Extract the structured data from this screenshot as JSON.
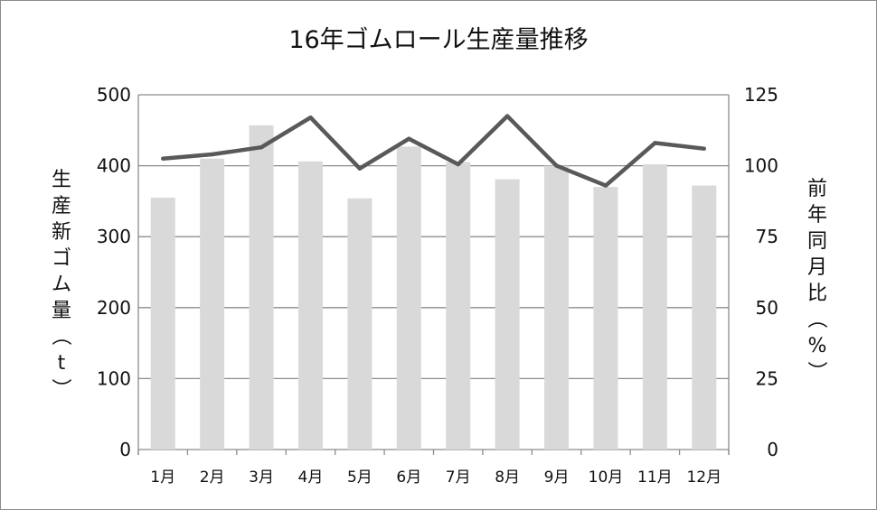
{
  "chart_data": {
    "type": "bar+line",
    "title": "16年ゴムロール生産量推移",
    "categories": [
      "1月",
      "2月",
      "3月",
      "4月",
      "5月",
      "6月",
      "7月",
      "8月",
      "9月",
      "10月",
      "11月",
      "12月"
    ],
    "series": [
      {
        "type": "bar",
        "axis": "left",
        "values": [
          355,
          410,
          457,
          406,
          354,
          427,
          405,
          381,
          400,
          370,
          402,
          372
        ]
      },
      {
        "type": "line",
        "axis": "right",
        "values": [
          102.5,
          104,
          106.5,
          117,
          99,
          109.5,
          100.5,
          117.5,
          100,
          93,
          108,
          106
        ]
      }
    ],
    "y_left": {
      "label": "生産新ゴム量（t）",
      "ylim": [
        0,
        500
      ],
      "ticks": [
        "0",
        "100",
        "200",
        "300",
        "400",
        "500"
      ]
    },
    "y_right": {
      "label": "前年同月比（%）",
      "ylim": [
        0,
        125
      ],
      "ticks": [
        "0",
        "25",
        "50",
        "75",
        "100",
        "125"
      ]
    },
    "grid": true,
    "legend": "none",
    "colors": {
      "bar": "#d9d9d9",
      "line": "#595959",
      "grid": "#8c8c8c",
      "frame": "#8c8c8c"
    }
  }
}
